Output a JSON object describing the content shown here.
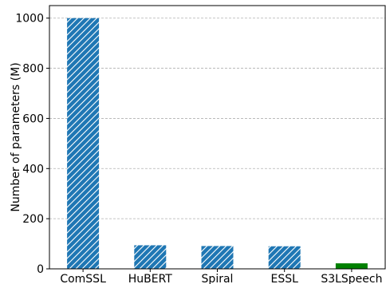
{
  "chart_data": {
    "type": "bar",
    "categories": [
      "ComSSL",
      "HuBERT",
      "Spiral",
      "ESSL",
      "S3LSpeech"
    ],
    "values": [
      1000,
      94,
      91,
      90,
      22
    ],
    "bar_colors": [
      "#1f77b4",
      "#1f77b4",
      "#1f77b4",
      "#1f77b4",
      "#008000"
    ],
    "bar_hatch": [
      true,
      true,
      true,
      true,
      false
    ],
    "xlabel": "",
    "ylabel": "Number of parameters (M)",
    "ylim": [
      0,
      1050
    ],
    "yticks": [
      0,
      200,
      400,
      600,
      800,
      1000
    ],
    "grid": "horizontal dashed"
  }
}
